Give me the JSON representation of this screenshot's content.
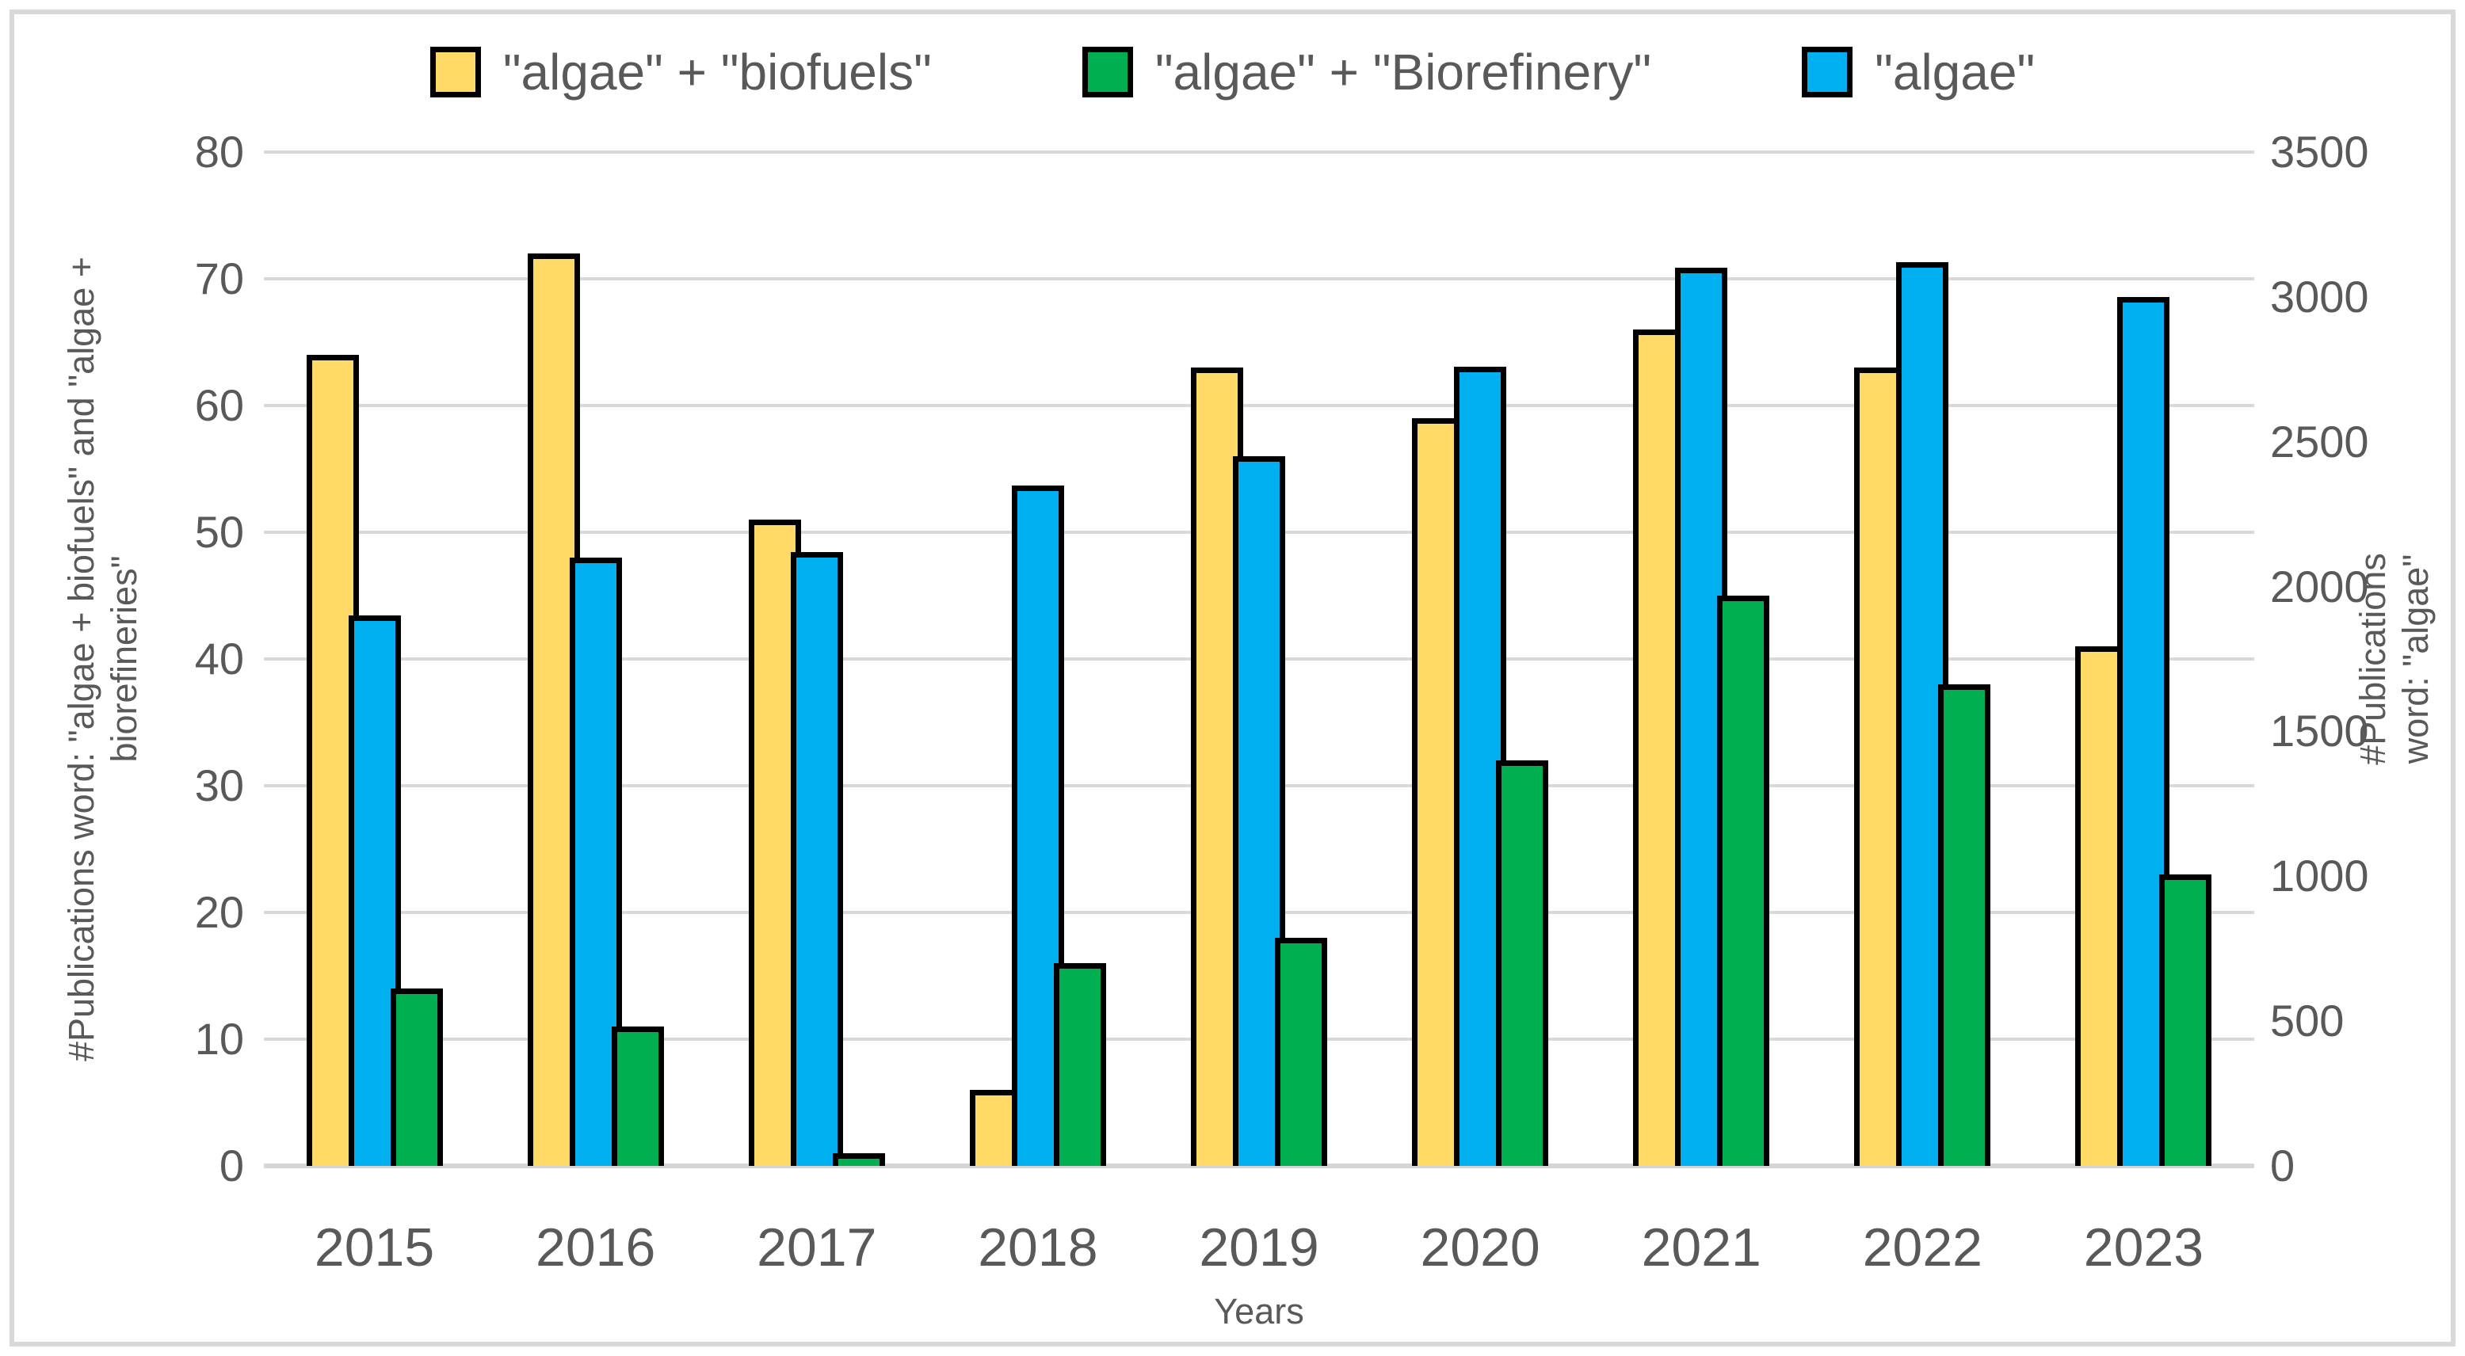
{
  "chart_data": {
    "type": "bar",
    "title": "",
    "categories": [
      "2015",
      "2016",
      "2017",
      "2018",
      "2019",
      "2020",
      "2021",
      "2022",
      "2023"
    ],
    "series": [
      {
        "name": "\"algae\" + \"biofuels\"",
        "color": "#FFD966",
        "axis": "left",
        "values": [
          64,
          72,
          51,
          6,
          63,
          59,
          66,
          63,
          41
        ]
      },
      {
        "name": "\"algae\" + \"Biorefinery\"",
        "color": "#00B050",
        "axis": "left",
        "values": [
          14,
          11,
          1,
          16,
          18,
          32,
          45,
          38,
          23
        ]
      },
      {
        "name": "\"algae\"",
        "color": "#00B0F0",
        "axis": "right",
        "values": [
          1900,
          2100,
          2120,
          2350,
          2450,
          2760,
          3100,
          3120,
          3000
        ]
      }
    ],
    "bar_order": [
      0,
      2,
      1
    ],
    "left_axis": {
      "title": "#Publications word: \"algae + biofuels\" and \"algae +\nbiorefineries\"",
      "min": 0,
      "max": 80,
      "step": 10,
      "ticks": [
        "0",
        "10",
        "20",
        "30",
        "40",
        "50",
        "60",
        "70",
        "80"
      ]
    },
    "right_axis": {
      "title": "#Publications word: \"algae\"",
      "min": 0,
      "max": 3500,
      "step": 500,
      "ticks": [
        "0",
        "500",
        "1000",
        "1500",
        "2000",
        "2500",
        "3000",
        "3500"
      ]
    },
    "xlabel": "Years",
    "grid": true,
    "legend_position": "top"
  },
  "styles": {
    "grid_color": "#D9D9D9",
    "baseline_color": "#D6D6D6",
    "text_color": "#595959",
    "bar_border_color": "#000000",
    "frame_color": "#D9D9D9",
    "background": "#FFFFFF"
  }
}
